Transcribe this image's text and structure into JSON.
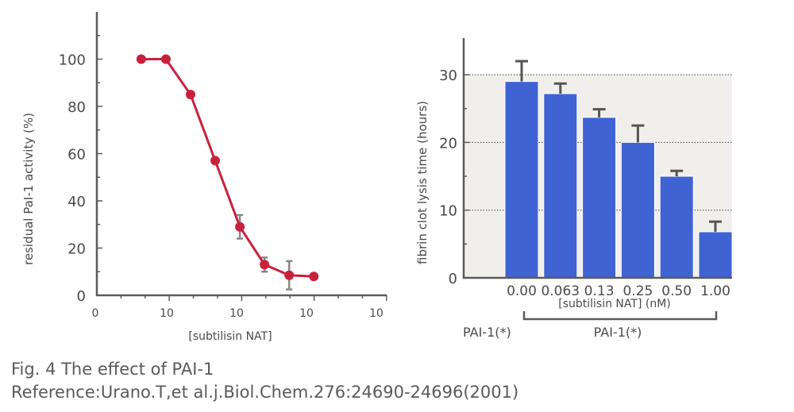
{
  "figure": {
    "caption": "Fig. 4 The effect of PAI-1",
    "reference": "Reference:Urano.T,et  al.j.Biol.Chem.276:24690-24696(2001)"
  },
  "colors": {
    "axis": "#5b5b5b",
    "text": "#4a4a4a",
    "line": "#c8213d",
    "error": "#888888",
    "bar": "#3f63d3",
    "errorbar": "#555555",
    "panel": "#f0efec"
  },
  "chart_data": [
    {
      "type": "line",
      "xlabel": "[subtilisin NAT]",
      "ylabel": "residual PaI-1 activity (%)",
      "ylim": [
        0,
        120
      ],
      "yticks": [
        0,
        20,
        40,
        60,
        80,
        100
      ],
      "xtick_labels": [
        "0",
        "10",
        "10",
        "10",
        "10"
      ],
      "grid": false,
      "series": [
        {
          "points": [
            {
              "x": 0.27,
              "y": 100
            },
            {
              "x": 0.42,
              "y": 100
            },
            {
              "x": 0.57,
              "y": 85
            },
            {
              "x": 0.72,
              "y": 57
            },
            {
              "x": 0.87,
              "y": 29,
              "err": 5
            },
            {
              "x": 1.02,
              "y": 13,
              "err": 3
            },
            {
              "x": 1.17,
              "y": 8.5,
              "err": 6
            },
            {
              "x": 1.32,
              "y": 8
            }
          ]
        }
      ]
    },
    {
      "type": "bar",
      "categories": [
        "0.00",
        "0.063",
        "0.13",
        "0.25",
        "0.50",
        "1.00"
      ],
      "values": [
        29,
        27.2,
        23.7,
        20,
        15,
        6.8
      ],
      "errors": [
        3,
        1.5,
        1.2,
        2.5,
        0.8,
        1.5
      ],
      "xlabel": "[subtilisin NAT] (nM)",
      "ylabel": "fibrin clot lysis time (hours)",
      "ylim": [
        0,
        35
      ],
      "yticks": [
        0,
        10,
        20,
        30
      ],
      "grid": true,
      "annotations": [
        "PAI-1(*)",
        "PAI-1(*)"
      ]
    }
  ]
}
